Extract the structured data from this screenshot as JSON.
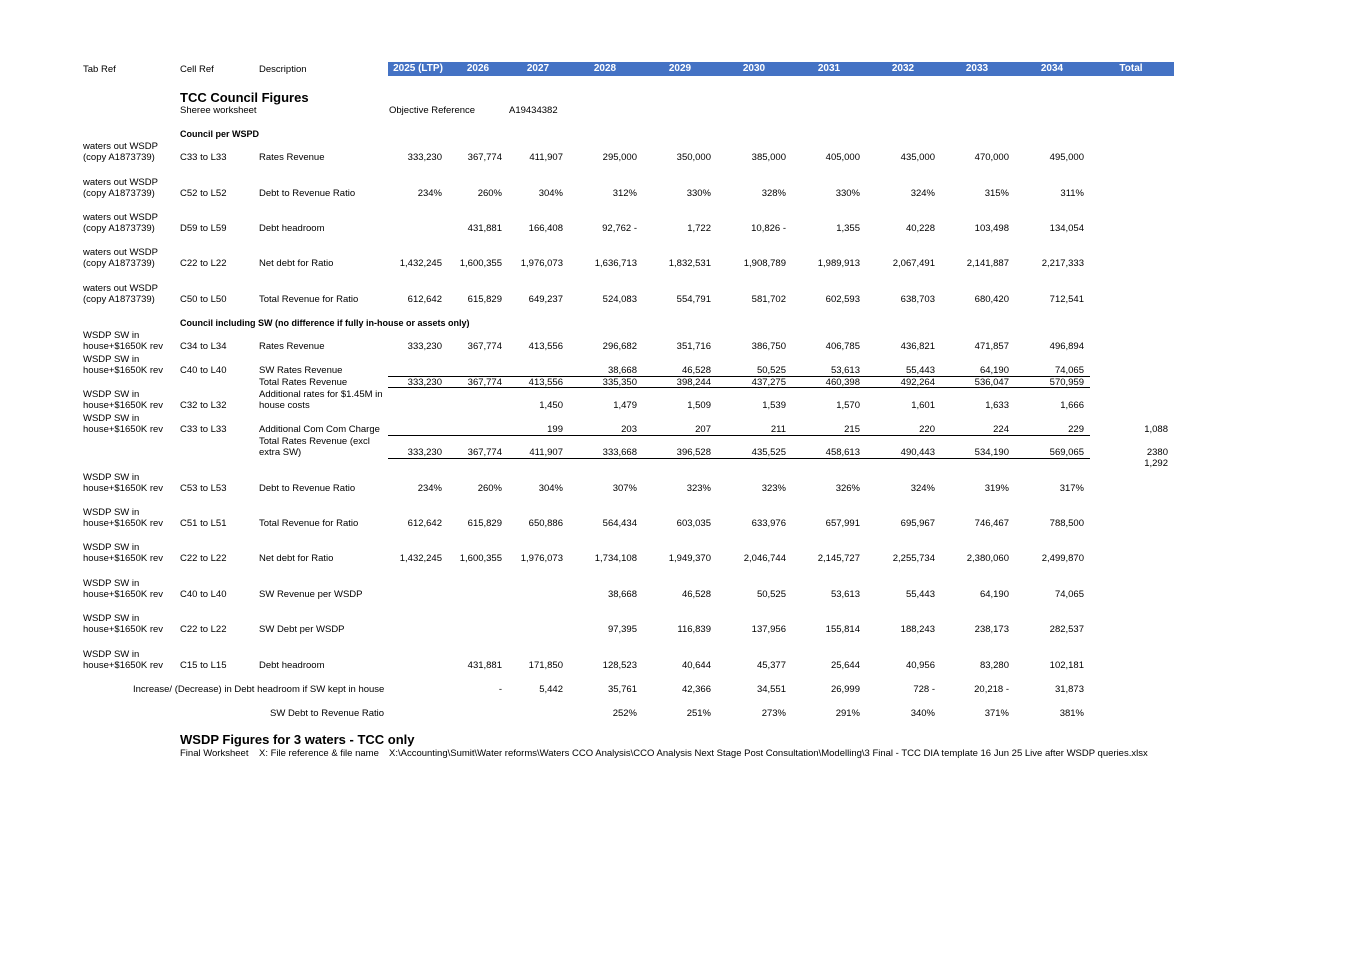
{
  "header": {
    "tab_ref": "Tab Ref",
    "cell_ref": "Cell Ref",
    "description": "Description",
    "years": [
      "2025 (LTP)",
      "2026",
      "2027",
      "2028",
      "2029",
      "2030",
      "2031",
      "2032",
      "2033",
      "2034"
    ],
    "total": "Total"
  },
  "section1": {
    "title": "TCC Council Figures",
    "worksheet": "Sheree worksheet",
    "objective_label": "Objective Reference",
    "objective_value": "A19434382",
    "subheading": "Council per WSPD"
  },
  "rows1": [
    {
      "tab": [
        "waters out WSDP",
        "(copy A1873739)"
      ],
      "cell": "C33 to L33",
      "desc": [
        "Rates Revenue"
      ],
      "vals": [
        "333,230",
        "367,774",
        "411,907",
        "295,000",
        "350,000",
        "385,000",
        "405,000",
        "435,000",
        "470,000",
        "495,000"
      ]
    },
    {
      "tab": [
        "waters out WSDP",
        "(copy A1873739)"
      ],
      "cell": "C52 to L52",
      "desc": [
        "Debt to Revenue Ratio"
      ],
      "vals": [
        "234%",
        "260%",
        "304%",
        "312%",
        "330%",
        "328%",
        "330%",
        "324%",
        "315%",
        "311%"
      ]
    },
    {
      "tab": [
        "waters out WSDP",
        "(copy A1873739)"
      ],
      "cell": "D59 to L59",
      "desc": [
        "Debt headroom"
      ],
      "vals": [
        "",
        "431,881",
        "166,408",
        "92,762 -",
        "1,722",
        "10,826 -",
        "1,355",
        "40,228",
        "103,498",
        "134,054"
      ]
    },
    {
      "tab": [
        "waters out WSDP",
        "(copy A1873739)"
      ],
      "cell": "C22 to L22",
      "desc": [
        "Net debt for Ratio"
      ],
      "vals": [
        "1,432,245",
        "1,600,355",
        "1,976,073",
        "1,636,713",
        "1,832,531",
        "1,908,789",
        "1,989,913",
        "2,067,491",
        "2,141,887",
        "2,217,333"
      ]
    },
    {
      "tab": [
        "waters out WSDP",
        "(copy A1873739)"
      ],
      "cell": "C50 to L50",
      "desc": [
        "Total Revenue for Ratio"
      ],
      "vals": [
        "612,642",
        "615,829",
        "649,237",
        "524,083",
        "554,791",
        "581,702",
        "602,593",
        "638,703",
        "680,420",
        "712,541"
      ]
    }
  ],
  "section2": {
    "subheading": "Council including SW (no difference if fully in-house or assets only)"
  },
  "rows2": [
    {
      "tab": [
        "WSDP SW in",
        "house+$1650K rev"
      ],
      "cell": "C34 to L34",
      "desc": [
        "Rates Revenue"
      ],
      "vals": [
        "333,230",
        "367,774",
        "413,556",
        "296,682",
        "351,716",
        "386,750",
        "406,785",
        "436,821",
        "471,857",
        "496,894"
      ],
      "total": ""
    },
    {
      "tab": [
        "WSDP SW in",
        "house+$1650K rev"
      ],
      "cell": "C40 to L40",
      "desc": [
        "SW Rates Revenue"
      ],
      "vals": [
        "",
        "",
        "",
        "38,668",
        "46,528",
        "50,525",
        "53,613",
        "55,443",
        "64,190",
        "74,065"
      ],
      "total": ""
    },
    {
      "tab": [],
      "cell": "",
      "desc": [
        "Total Rates Revenue"
      ],
      "vals": [
        "333,230",
        "367,774",
        "413,556",
        "335,350",
        "398,244",
        "437,275",
        "460,398",
        "492,264",
        "536,047",
        "570,959"
      ],
      "total": ""
    },
    {
      "tab": [
        "WSDP SW in",
        "house+$1650K rev"
      ],
      "cell": "C32 to L32",
      "desc": [
        "Additional rates for $1.45M in",
        "house costs"
      ],
      "vals": [
        "",
        "",
        "1,450",
        "1,479",
        "1,509",
        "1,539",
        "1,570",
        "1,601",
        "1,633",
        "1,666"
      ],
      "total": ""
    },
    {
      "tab": [
        "WSDP SW in",
        "house+$1650K rev"
      ],
      "cell": "C33 to L33",
      "desc": [
        "Additional Com Com Charge"
      ],
      "vals": [
        "",
        "",
        "199",
        "203",
        "207",
        "211",
        "215",
        "220",
        "224",
        "229"
      ],
      "total": "1,088"
    },
    {
      "tab": [],
      "cell": "",
      "desc": [
        "Total Rates Revenue (excl",
        "extra SW)"
      ],
      "vals": [
        "333,230",
        "367,774",
        "411,907",
        "333,668",
        "396,528",
        "435,525",
        "458,613",
        "490,443",
        "534,190",
        "569,065"
      ],
      "total": "2380",
      "total2": "1,292"
    },
    {
      "tab": [
        "WSDP SW in",
        "house+$1650K rev"
      ],
      "cell": "C53 to L53",
      "desc": [
        "Debt to Revenue Ratio"
      ],
      "vals": [
        "234%",
        "260%",
        "304%",
        "307%",
        "323%",
        "323%",
        "326%",
        "324%",
        "319%",
        "317%"
      ],
      "total": ""
    },
    {
      "tab": [
        "WSDP SW in",
        "house+$1650K rev"
      ],
      "cell": "C51 to L51",
      "desc": [
        "Total Revenue for Ratio"
      ],
      "vals": [
        "612,642",
        "615,829",
        "650,886",
        "564,434",
        "603,035",
        "633,976",
        "657,991",
        "695,967",
        "746,467",
        "788,500"
      ],
      "total": ""
    },
    {
      "tab": [
        "WSDP SW in",
        "house+$1650K rev"
      ],
      "cell": "C22 to L22",
      "desc": [
        "Net debt for Ratio"
      ],
      "vals": [
        "1,432,245",
        "1,600,355",
        "1,976,073",
        "1,734,108",
        "1,949,370",
        "2,046,744",
        "2,145,727",
        "2,255,734",
        "2,380,060",
        "2,499,870"
      ],
      "total": ""
    },
    {
      "tab": [
        "WSDP SW in",
        "house+$1650K rev"
      ],
      "cell": "C40 to L40",
      "desc": [
        "SW Revenue per WSDP"
      ],
      "vals": [
        "",
        "",
        "",
        "38,668",
        "46,528",
        "50,525",
        "53,613",
        "55,443",
        "64,190",
        "74,065"
      ],
      "total": ""
    },
    {
      "tab": [
        "WSDP SW in",
        "house+$1650K rev"
      ],
      "cell": "C22 to L22",
      "desc": [
        "SW Debt per WSDP"
      ],
      "vals": [
        "",
        "",
        "",
        "97,395",
        "116,839",
        "137,956",
        "155,814",
        "188,243",
        "238,173",
        "282,537"
      ],
      "total": ""
    },
    {
      "tab": [
        "WSDP SW in",
        "house+$1650K rev"
      ],
      "cell": "C15 to L15",
      "desc": [
        "Debt headroom"
      ],
      "vals": [
        "",
        "431,881",
        "171,850",
        "128,523",
        "40,644",
        "45,377",
        "25,644",
        "40,956",
        "83,280",
        "102,181"
      ],
      "total": ""
    }
  ],
  "summary": {
    "increase_label": "Increase/ (Decrease) in Debt headroom if SW kept in house",
    "increase_vals": [
      "",
      "-",
      "5,442",
      "35,761",
      "42,366",
      "34,551",
      "26,999",
      "728 -",
      "20,218 -",
      "31,873"
    ],
    "ratio_label": "SW Debt to Revenue Ratio",
    "ratio_vals": [
      "",
      "",
      "",
      "252%",
      "251%",
      "273%",
      "291%",
      "340%",
      "371%",
      "381%"
    ]
  },
  "section3": {
    "title": "WSDP Figures for 3 waters - TCC only",
    "worksheet": "Final Worksheet",
    "file_label": "X: File reference & file name",
    "file_path": "X:\\Accounting\\Sumit\\Water reforms\\Waters CCO Analysis\\CCO Analysis Next Stage Post Consultation\\Modelling\\3 Final - TCC DIA template 16 Jun 25 Live after WSDP queries.xlsx"
  }
}
